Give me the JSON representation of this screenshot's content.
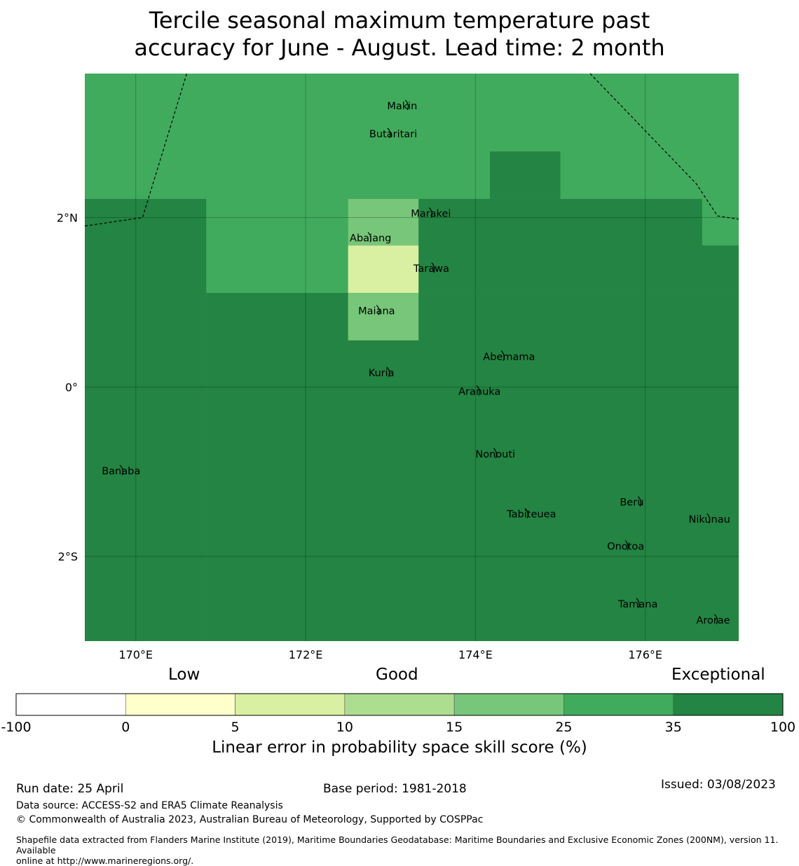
{
  "title_line1": "Tercile seasonal maximum temperature past",
  "title_line2": "accuracy for June - August. Lead time: 2 month",
  "map": {
    "lon_range": [
      169.4,
      177.1
    ],
    "lat_range": [
      -3.0,
      3.7
    ],
    "lon_ticks": [
      {
        "value": 170,
        "label": "170°E"
      },
      {
        "value": 172,
        "label": "172°E"
      },
      {
        "value": 174,
        "label": "174°E"
      },
      {
        "value": 176,
        "label": "176°E"
      }
    ],
    "lat_ticks": [
      {
        "value": 2,
        "label": "2°N"
      },
      {
        "value": 0,
        "label": "0°"
      },
      {
        "value": -2,
        "label": "2°S"
      }
    ],
    "background_color": "#41ab5d",
    "cells": [
      {
        "lon": [
          169.4,
          177.1
        ],
        "lat": [
          -3.0,
          3.7
        ],
        "color": "#41ab5d"
      },
      {
        "lon": [
          169.4,
          170.83
        ],
        "lat": [
          -3.0,
          2.22
        ],
        "color": "#238443"
      },
      {
        "lon": [
          170.83,
          177.1
        ],
        "lat": [
          -3.0,
          1.11
        ],
        "color": "#238443"
      },
      {
        "lon": [
          172.5,
          177.1
        ],
        "lat": [
          1.11,
          2.22
        ],
        "color": "#238443"
      },
      {
        "lon": [
          174.17,
          175.0
        ],
        "lat": [
          2.22,
          2.78
        ],
        "color": "#238443"
      },
      {
        "lon": [
          176.67,
          177.1
        ],
        "lat": [
          1.67,
          2.22
        ],
        "color": "#41ab5d"
      },
      {
        "lon": [
          172.5,
          173.33
        ],
        "lat": [
          1.67,
          2.22
        ],
        "color": "#78c679"
      },
      {
        "lon": [
          172.5,
          173.33
        ],
        "lat": [
          1.11,
          1.67
        ],
        "color": "#d9f0a3"
      },
      {
        "lon": [
          172.5,
          173.33
        ],
        "lat": [
          0.55,
          1.11
        ],
        "color": "#78c679"
      }
    ],
    "boundary_lines": [
      [
        [
          169.4,
          1.9
        ],
        [
          170.08,
          2.0
        ],
        [
          170.6,
          3.7
        ]
      ],
      [
        [
          175.35,
          3.7
        ],
        [
          176.6,
          2.4
        ],
        [
          176.85,
          2.02
        ],
        [
          177.1,
          1.98
        ]
      ]
    ],
    "islands": [
      {
        "name": "Makin",
        "lon": 172.96,
        "lat": 3.32
      },
      {
        "name": "Butaritari",
        "lon": 172.75,
        "lat": 2.99
      },
      {
        "name": "Marakei",
        "lon": 173.24,
        "lat": 2.05
      },
      {
        "name": "Abaiang",
        "lon": 172.52,
        "lat": 1.76
      },
      {
        "name": "Tarawa",
        "lon": 173.27,
        "lat": 1.4
      },
      {
        "name": "Maiana",
        "lon": 172.62,
        "lat": 0.9
      },
      {
        "name": "Abemama",
        "lon": 174.09,
        "lat": 0.36
      },
      {
        "name": "Kuria",
        "lon": 172.74,
        "lat": 0.17
      },
      {
        "name": "Aranuka",
        "lon": 173.8,
        "lat": -0.05
      },
      {
        "name": "Nonouti",
        "lon": 174.0,
        "lat": -0.79
      },
      {
        "name": "Banaba",
        "lon": 169.6,
        "lat": -0.99
      },
      {
        "name": "Tabiteuea",
        "lon": 174.37,
        "lat": -1.5
      },
      {
        "name": "Beru",
        "lon": 175.7,
        "lat": -1.36
      },
      {
        "name": "Nikunau",
        "lon": 176.51,
        "lat": -1.56
      },
      {
        "name": "Onotoa",
        "lon": 175.55,
        "lat": -1.88
      },
      {
        "name": "Tamana",
        "lon": 175.68,
        "lat": -2.56
      },
      {
        "name": "Arorae",
        "lon": 176.6,
        "lat": -2.75
      }
    ]
  },
  "colorbar": {
    "category_labels": [
      "Low",
      "Good",
      "Exceptional"
    ],
    "ticks": [
      "-100",
      "0",
      "5",
      "10",
      "15",
      "25",
      "35",
      "100"
    ],
    "colors": [
      "#ffffff",
      "#ffffcc",
      "#d9f0a3",
      "#addd8e",
      "#78c679",
      "#41ab5d",
      "#238443"
    ],
    "label": "Linear error in probability space skill score (%)"
  },
  "footer": {
    "run_date": "Run date: 25 April",
    "base_period": "Base period: 1981-2018",
    "issued": "Issued: 03/08/2023",
    "data_source": "Data source: ACCESS-S2 and ERA5 Climate Reanalysis",
    "copyright": "© Commonwealth of Australia 2023, Australian Bureau of Meteorology, Supported by COSPPac",
    "shapefile_line1": "Shapefile data extracted from Flanders Marine Institute (2019), Maritime Boundaries Geodatabase: Maritime Boundaries and Exclusive Economic Zones (200NM), version 11. Available",
    "shapefile_line2": "online at http://www.marineregions.org/."
  }
}
